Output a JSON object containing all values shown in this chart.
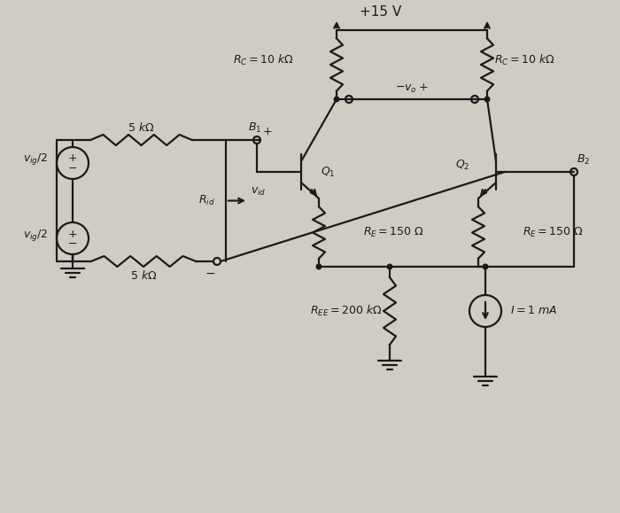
{
  "bg_color": "#d0ccc4",
  "line_color": "#1a1a1a",
  "label_15V": "+15 V",
  "label_RC1": "$R_C = 10\\ k\\Omega$",
  "label_RC2": "$R_C = 10\\ k\\Omega$",
  "label_RE1": "$R_E = 150\\ \\Omega$",
  "label_RE2": "$R_E = 150\\ \\Omega$",
  "label_REE": "$R_{EE} = 200\\ k\\Omega$",
  "label_R1": "$5\\ k\\Omega$",
  "label_R2": "$5\\ k\\Omega$",
  "label_Rid": "$R_{id}$",
  "label_I": "$I = 1\\ mA$",
  "label_Q1": "$Q_1$",
  "label_Q2": "$Q_2$",
  "label_B1": "$B_1$",
  "label_B2": "$B_2$",
  "label_vo": "$- v_o +$",
  "label_vid": "$v_{id}$",
  "label_vin1": "$v_{ig}/2$",
  "label_vin2": "$v_{ig}/2$"
}
